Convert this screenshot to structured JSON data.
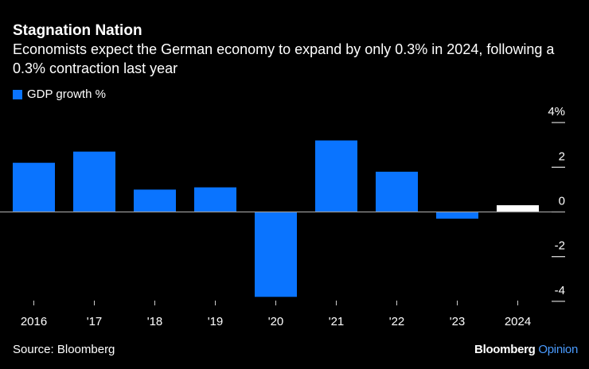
{
  "chart_data": {
    "type": "bar",
    "title": "Stagnation Nation",
    "subtitle": "Economists expect the German economy to expand by only 0.3% in 2024, following a 0.3% contraction last year",
    "categories": [
      "2016",
      "'17",
      "'18",
      "'19",
      "'20",
      "'21",
      "'22",
      "'23",
      "2024"
    ],
    "series": [
      {
        "name": "GDP growth %",
        "values": [
          2.2,
          2.7,
          1.0,
          1.1,
          -3.8,
          3.2,
          1.8,
          -0.3,
          0.3
        ]
      }
    ],
    "highlight_index": 8,
    "ylim": [
      -4,
      4
    ],
    "yticks": [
      4,
      2,
      0,
      -2,
      -4
    ],
    "ytick_labels": [
      "4%",
      "2",
      "0",
      "-2",
      "-4"
    ],
    "xlabel": "",
    "ylabel": "",
    "legend_position": "top-left",
    "colors": {
      "bar": "#0a74ff",
      "highlight": "#ffffff",
      "zero_line": "#999999"
    }
  },
  "footer": {
    "source": "Source: Bloomberg",
    "brand": "Bloomberg",
    "brand_suffix": "Opinion"
  }
}
